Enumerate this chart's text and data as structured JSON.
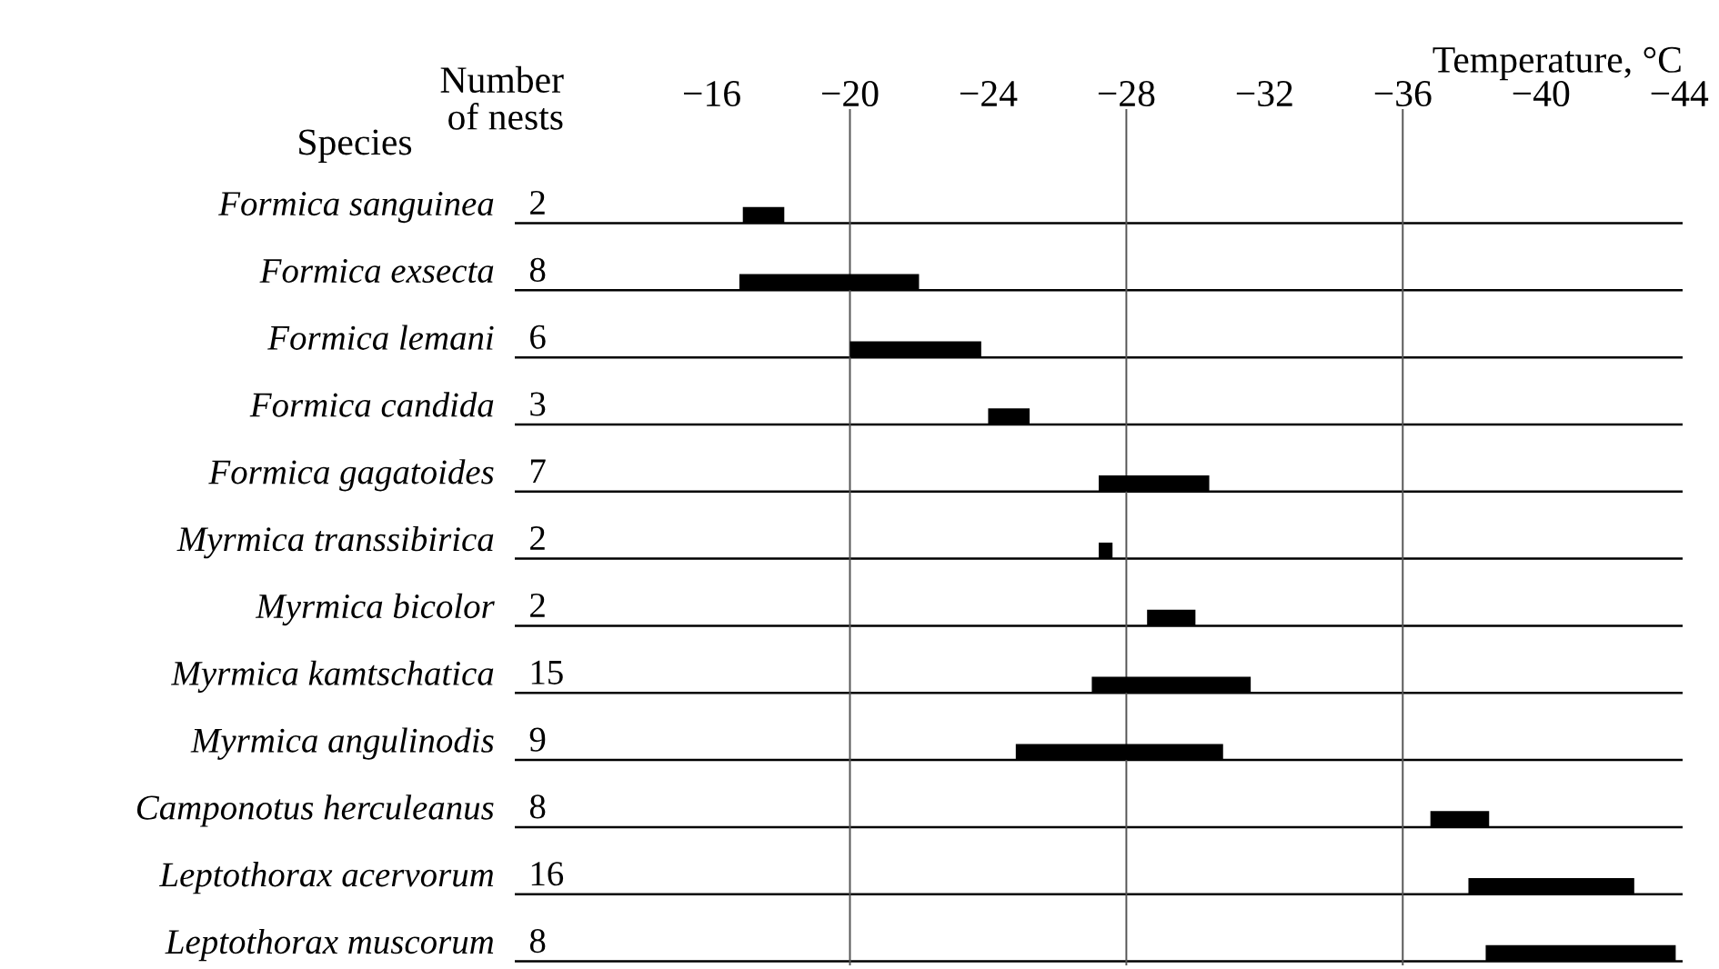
{
  "chart_data": {
    "type": "bar",
    "orientation": "horizontal",
    "xlabel": "Temperature, °C",
    "categories": [
      "Formica sanguinea",
      "Formica exsecta",
      "Formica lemani",
      "Formica candida",
      "Formica gagatoides",
      "Myrmica transsibirica",
      "Myrmica bicolor",
      "Myrmica kamtschatica",
      "Myrmica angulinodis",
      "Camponotus herculeanus",
      "Leptothorax acervorum",
      "Leptothorax muscorum"
    ],
    "base": [
      -16.9,
      -16.8,
      -20.0,
      -24.0,
      -27.2,
      -27.2,
      -28.6,
      -27.0,
      -24.8,
      -36.8,
      -37.9,
      -38.4
    ],
    "values": [
      -1.2,
      -5.2,
      -3.8,
      -1.2,
      -3.2,
      -0.4,
      -1.4,
      -4.6,
      -6.0,
      -1.7,
      -4.8,
      -5.5
    ],
    "color": "#000000",
    "xlim": [
      -10.3,
      -44.1
    ],
    "xticks": [
      -16,
      -20,
      -24,
      -28,
      -32,
      -36,
      -40,
      -44
    ],
    "grid": "y",
    "ref_lines": [
      {
        "axis": "x",
        "value": -20
      },
      {
        "axis": "x",
        "value": -28
      },
      {
        "axis": "x",
        "value": -36
      }
    ],
    "annotations": [
      "Species",
      "Number\nof nests",
      "2",
      "8",
      "6",
      "3",
      "7",
      "2",
      "2",
      "15",
      "9",
      "8",
      "16",
      "8"
    ]
  }
}
